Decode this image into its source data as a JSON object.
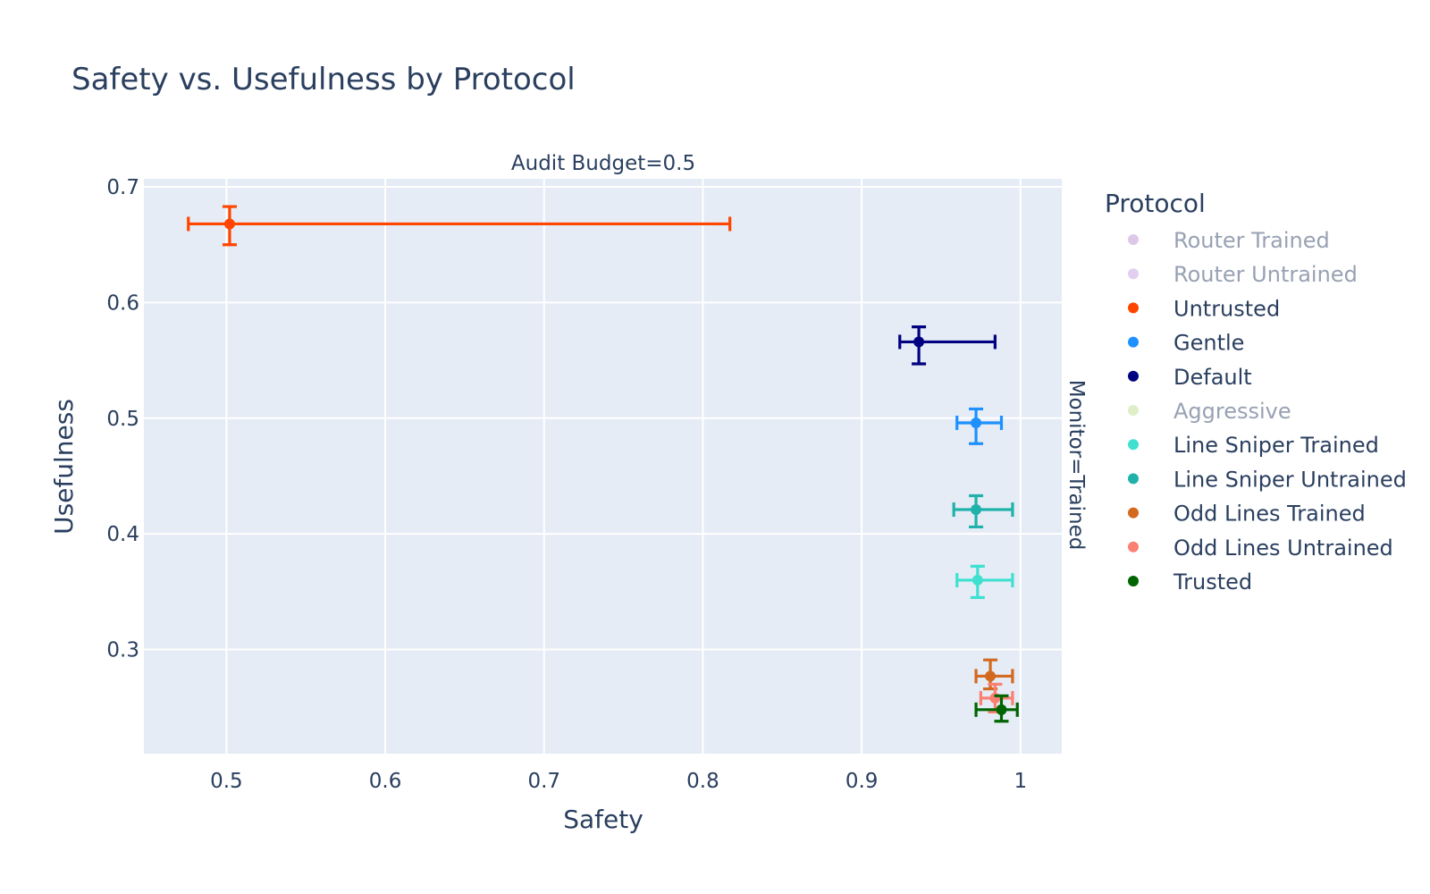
{
  "chart_data": {
    "type": "scatter",
    "title": "Safety vs. Usefulness by Protocol",
    "facet_label": "Audit Budget=0.5",
    "row_label": "Monitor=Trained",
    "xlabel": "Safety",
    "ylabel": "Usefulness",
    "xlim": [
      0.448,
      1.026
    ],
    "ylim": [
      0.21,
      0.707
    ],
    "xticks": [
      0.5,
      0.6,
      0.7,
      0.8,
      0.9,
      1
    ],
    "xtick_labels": [
      "0.5",
      "0.6",
      "0.7",
      "0.8",
      "0.9",
      "1"
    ],
    "yticks": [
      0.3,
      0.4,
      0.5,
      0.6,
      0.7
    ],
    "ytick_labels": [
      "0.3",
      "0.4",
      "0.5",
      "0.6",
      "0.7"
    ],
    "grid": true,
    "legend_title": "Protocol",
    "legend_placement": "right",
    "series": [
      {
        "name": "Router Trained",
        "color": "#c39bd3",
        "visible": false
      },
      {
        "name": "Router Untrained",
        "color": "#c9a6e4",
        "visible": false
      },
      {
        "name": "Untrusted",
        "color": "#ff4500",
        "visible": true,
        "x": 0.502,
        "y": 0.668,
        "x_err_minus": 0.026,
        "x_err_plus": 0.315,
        "y_err_minus": 0.018,
        "y_err_plus": 0.015
      },
      {
        "name": "Gentle",
        "color": "#1e90ff",
        "visible": true,
        "x": 0.972,
        "y": 0.496,
        "x_err_minus": 0.012,
        "x_err_plus": 0.016,
        "y_err_minus": 0.018,
        "y_err_plus": 0.012
      },
      {
        "name": "Default",
        "color": "#000080",
        "visible": true,
        "x": 0.936,
        "y": 0.566,
        "x_err_minus": 0.012,
        "x_err_plus": 0.048,
        "y_err_minus": 0.019,
        "y_err_plus": 0.013
      },
      {
        "name": "Aggressive",
        "color": "#c5e09b",
        "visible": false
      },
      {
        "name": "Line Sniper Trained",
        "color": "#40e0d0",
        "visible": true,
        "x": 0.973,
        "y": 0.36,
        "x_err_minus": 0.013,
        "x_err_plus": 0.022,
        "y_err_minus": 0.015,
        "y_err_plus": 0.012
      },
      {
        "name": "Line Sniper Untrained",
        "color": "#20b2aa",
        "visible": true,
        "x": 0.972,
        "y": 0.421,
        "x_err_minus": 0.014,
        "x_err_plus": 0.023,
        "y_err_minus": 0.015,
        "y_err_plus": 0.012
      },
      {
        "name": "Odd Lines Trained",
        "color": "#d2691e",
        "visible": true,
        "x": 0.981,
        "y": 0.277,
        "x_err_minus": 0.009,
        "x_err_plus": 0.014,
        "y_err_minus": 0.011,
        "y_err_plus": 0.014
      },
      {
        "name": "Odd Lines Untrained",
        "color": "#fa8072",
        "visible": true,
        "x": 0.984,
        "y": 0.258,
        "x_err_minus": 0.009,
        "x_err_plus": 0.011,
        "y_err_minus": 0.012,
        "y_err_plus": 0.012
      },
      {
        "name": "Trusted",
        "color": "#006400",
        "visible": true,
        "x": 0.988,
        "y": 0.248,
        "x_err_minus": 0.016,
        "x_err_plus": 0.01,
        "y_err_minus": 0.01,
        "y_err_plus": 0.012
      }
    ]
  },
  "colors": {
    "plot_background": "#e5ecf6",
    "grid": "#ffffff",
    "text": "#2a3f5f",
    "legend_hidden_text": "#98a1b3",
    "legend_hidden_marker_opacity": "0.55"
  }
}
